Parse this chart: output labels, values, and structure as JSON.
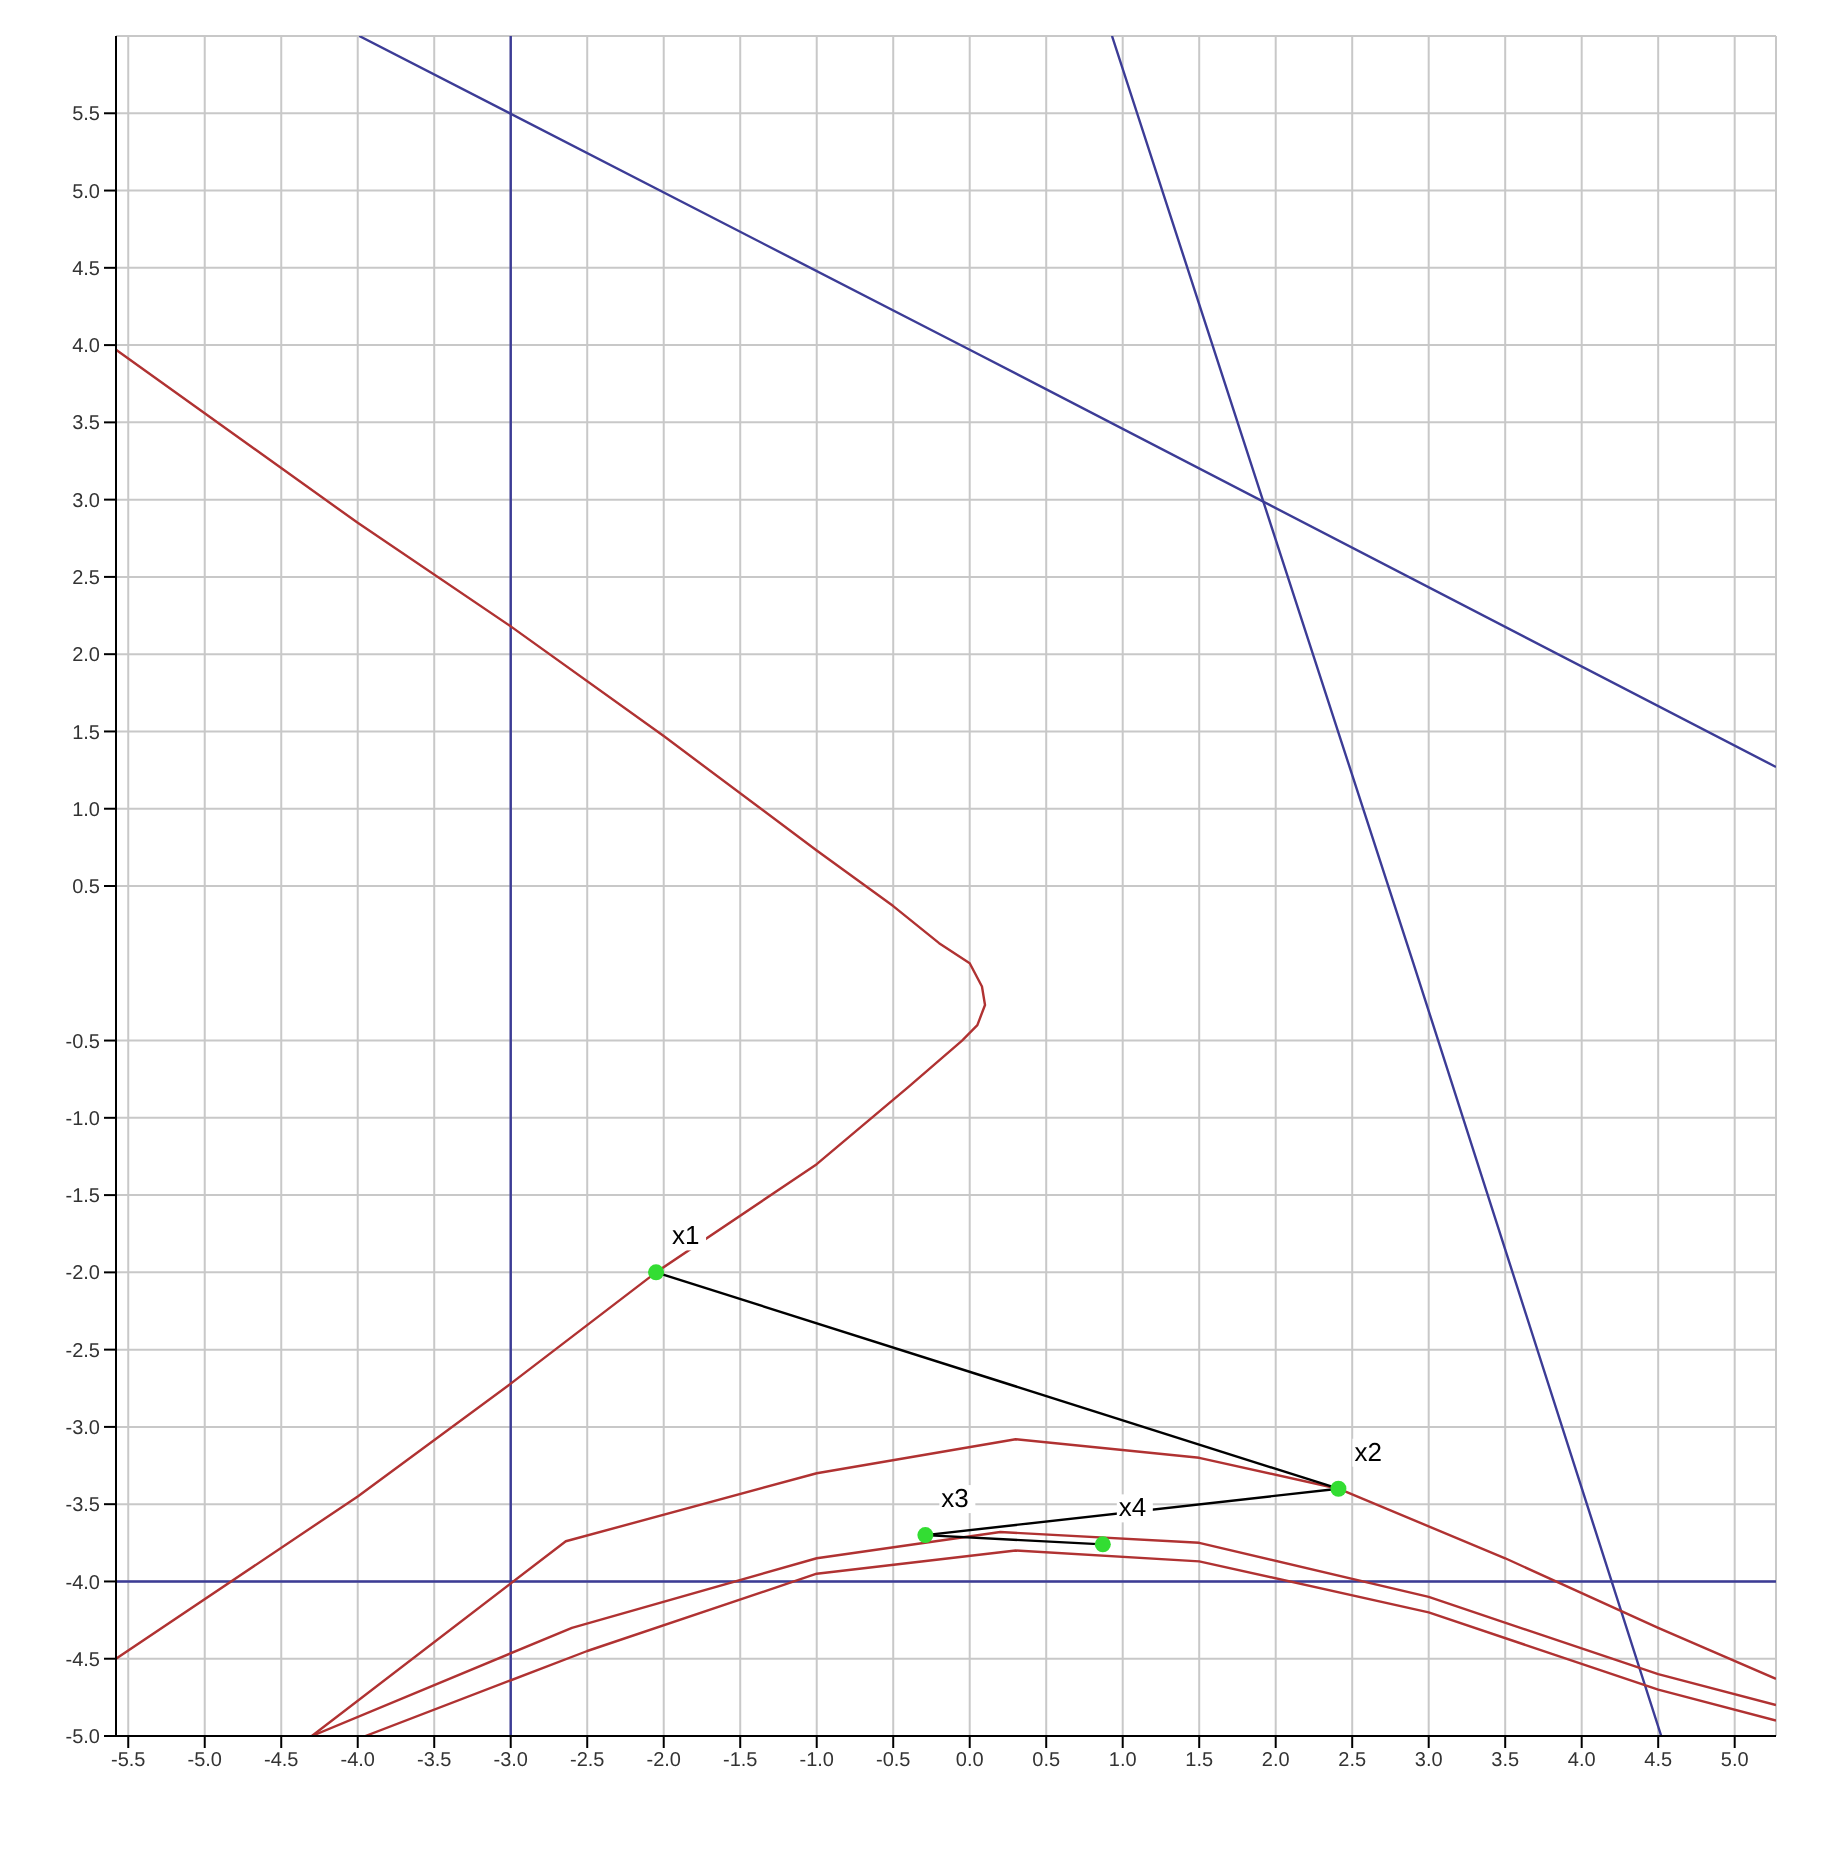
{
  "chart_data": {
    "type": "line",
    "xlim": [
      -5.58,
      5.27
    ],
    "ylim": [
      -5.0,
      6.0
    ],
    "xticks": [
      -5.5,
      {
        "value": -5,
        "label": "-5.0"
      },
      -4.5,
      {
        "value": -4,
        "label": "-4.0"
      },
      -3.5,
      {
        "value": -3,
        "label": "-3.0"
      },
      -2.5,
      {
        "value": -2,
        "label": "-2.0"
      },
      -1.5,
      {
        "value": -1,
        "label": "-1.0"
      },
      -0.5,
      {
        "value": 0,
        "label": "0.0"
      },
      0.5,
      {
        "value": 1,
        "label": "1.0"
      },
      1.5,
      {
        "value": 2,
        "label": "2.0"
      },
      2.5,
      {
        "value": 3,
        "label": "3.0"
      },
      3.5,
      {
        "value": 4,
        "label": "4.0"
      },
      4.5,
      {
        "value": 5,
        "label": "5.0"
      }
    ],
    "yticks": [
      {
        "value": -5,
        "label": "-5.0"
      },
      -4.5,
      {
        "value": -4,
        "label": "-4.0"
      },
      -3.5,
      {
        "value": -3,
        "label": "-3.0"
      },
      -2.5,
      {
        "value": -2,
        "label": "-2.0"
      },
      -1.5,
      {
        "value": -1,
        "label": "-1.0"
      },
      -0.5,
      0.5,
      {
        "value": 1,
        "label": "1.0"
      },
      1.5,
      {
        "value": 2,
        "label": "2.0"
      },
      2.5,
      {
        "value": 3,
        "label": "3.0"
      },
      3.5,
      {
        "value": 4,
        "label": "4.0"
      },
      4.5,
      {
        "value": 5,
        "label": "5.0"
      },
      5.5
    ],
    "grid": true,
    "line_style": "solid",
    "series": [
      {
        "color": "#3c3c96",
        "x": [
          -3,
          -3
        ],
        "values": [
          -5,
          6
        ]
      },
      {
        "color": "#3c3c96",
        "x": [
          -5.58,
          5.27
        ],
        "values": [
          -4,
          -4
        ]
      },
      {
        "color": "#3c3c96",
        "x": [
          -3.99,
          0,
          5.27
        ],
        "values": [
          6.0,
          3.97,
          1.27
        ]
      },
      {
        "color": "#3c3c96",
        "x": [
          0.93,
          2.9,
          4.52
        ],
        "values": [
          6.0,
          0,
          -5.0
        ]
      },
      {
        "color": "#b03232",
        "x": [
          -5.58,
          -4,
          -3,
          -2,
          -1,
          -0.5,
          -0.2,
          0,
          0.08,
          0.1,
          0.05,
          -0.05,
          -0.4,
          -1,
          -2.05,
          -3,
          -4,
          -5.58
        ],
        "values": [
          3.97,
          2.85,
          2.18,
          1.47,
          0.73,
          0.37,
          0.13,
          0,
          -0.15,
          -0.27,
          -0.4,
          -0.5,
          -0.8,
          -1.3,
          -2.0,
          -2.72,
          -3.45,
          -4.5
        ]
      },
      {
        "color": "#b03232",
        "x": [
          -4.3,
          -2.64,
          -1,
          0.3,
          1.5,
          2.41,
          3.5,
          4.5,
          5.27
        ],
        "values": [
          -5.0,
          -3.74,
          -3.3,
          -3.08,
          -3.2,
          -3.4,
          -3.85,
          -4.3,
          -4.63
        ]
      },
      {
        "color": "#b03232",
        "x": [
          -4.3,
          -2.6,
          -1,
          0.2,
          1.5,
          3,
          4.5,
          5.27
        ],
        "values": [
          -5.0,
          -4.3,
          -3.85,
          -3.68,
          -3.75,
          -4.1,
          -4.6,
          -4.8
        ]
      },
      {
        "color": "#b03232",
        "x": [
          -3.95,
          -2.5,
          -1,
          0.3,
          1.5,
          3,
          4.5,
          5.27
        ],
        "values": [
          -5.0,
          -4.45,
          -3.95,
          -3.8,
          -3.87,
          -4.2,
          -4.7,
          -4.9
        ]
      },
      {
        "color": "#000000",
        "x": [
          -2.05,
          2.41
        ],
        "values": [
          -2.0,
          -3.4
        ]
      },
      {
        "color": "#000000",
        "x": [
          2.41,
          -0.29
        ],
        "values": [
          -3.4,
          -3.7
        ]
      },
      {
        "color": "#000000",
        "x": [
          -0.29,
          0.87
        ],
        "values": [
          -3.7,
          -3.76
        ]
      },
      {
        "type": "scatter",
        "color": "#33dd33",
        "x": [
          -2.05,
          2.41,
          -0.29,
          0.87
        ],
        "values": [
          -2.0,
          -3.4,
          -3.7,
          -3.76
        ]
      }
    ],
    "annotations": [
      {
        "text": "x1",
        "x": -2.05,
        "y": -2.0
      },
      {
        "text": "x2",
        "x": 2.41,
        "y": -3.4
      },
      {
        "text": "x3",
        "x": -0.29,
        "y": -3.7
      },
      {
        "text": "x4",
        "x": 0.87,
        "y": -3.76
      }
    ]
  }
}
